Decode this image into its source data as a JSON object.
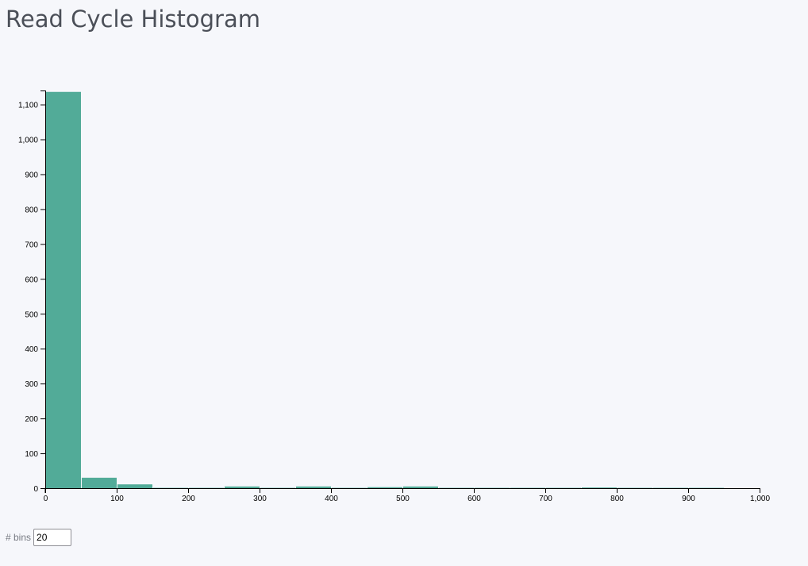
{
  "page": {
    "title": "Read Cycle Histogram"
  },
  "controls": {
    "bins_label": "# bins",
    "bins_value": "20"
  },
  "chart_data": {
    "type": "bar",
    "title": "Read Cycle Histogram",
    "xlabel": "",
    "ylabel": "",
    "bin_width": 50,
    "xlim": [
      0,
      1000
    ],
    "ylim": [
      0,
      1140
    ],
    "x_ticks": [
      0,
      100,
      200,
      300,
      400,
      500,
      600,
      700,
      800,
      900,
      1000
    ],
    "x_tick_labels": [
      "0",
      "100",
      "200",
      "300",
      "400",
      "500",
      "600",
      "700",
      "800",
      "900",
      "1,000"
    ],
    "y_ticks": [
      0,
      100,
      200,
      300,
      400,
      500,
      600,
      700,
      800,
      900,
      1000,
      1100
    ],
    "y_tick_labels": [
      "0",
      "100",
      "200",
      "300",
      "400",
      "500",
      "600",
      "700",
      "800",
      "900",
      "1,000",
      "1,100"
    ],
    "bins": [
      {
        "x0": 0,
        "x1": 50,
        "count": 1136
      },
      {
        "x0": 50,
        "x1": 100,
        "count": 30
      },
      {
        "x0": 100,
        "x1": 150,
        "count": 11
      },
      {
        "x0": 150,
        "x1": 200,
        "count": 1
      },
      {
        "x0": 200,
        "x1": 250,
        "count": 1
      },
      {
        "x0": 250,
        "x1": 300,
        "count": 5
      },
      {
        "x0": 300,
        "x1": 350,
        "count": 1
      },
      {
        "x0": 350,
        "x1": 400,
        "count": 5
      },
      {
        "x0": 400,
        "x1": 450,
        "count": 1
      },
      {
        "x0": 450,
        "x1": 500,
        "count": 3
      },
      {
        "x0": 500,
        "x1": 550,
        "count": 5
      },
      {
        "x0": 550,
        "x1": 600,
        "count": 1
      },
      {
        "x0": 600,
        "x1": 650,
        "count": 1
      },
      {
        "x0": 650,
        "x1": 700,
        "count": 1
      },
      {
        "x0": 700,
        "x1": 750,
        "count": 1
      },
      {
        "x0": 750,
        "x1": 800,
        "count": 2
      },
      {
        "x0": 800,
        "x1": 850,
        "count": 1
      },
      {
        "x0": 850,
        "x1": 900,
        "count": 1
      },
      {
        "x0": 900,
        "x1": 950,
        "count": 1
      },
      {
        "x0": 950,
        "x1": 1000,
        "count": 0
      }
    ],
    "bar_color": "#52ab98",
    "grid": false,
    "legend": "none"
  }
}
